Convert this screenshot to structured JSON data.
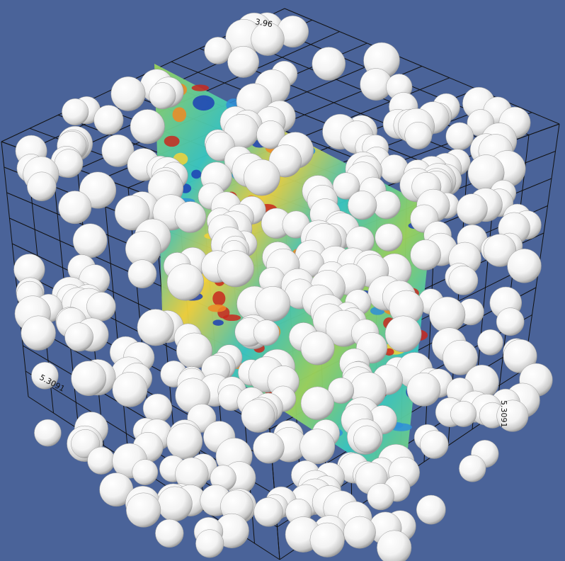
{
  "viewport": {
    "background": "#4a6399",
    "description_kind": "3d-render"
  },
  "render": {
    "sphere_color": "#ffffff",
    "grid_color": "#111111",
    "slice_colormap": [
      "#1e3fb5",
      "#2f8fd8",
      "#39c6c0",
      "#9cd35a",
      "#f2d23a",
      "#f08a24",
      "#c8281e"
    ]
  },
  "axes": {
    "top_label": "3.96",
    "left_label": "5.3091",
    "right_label": "5.3091"
  }
}
